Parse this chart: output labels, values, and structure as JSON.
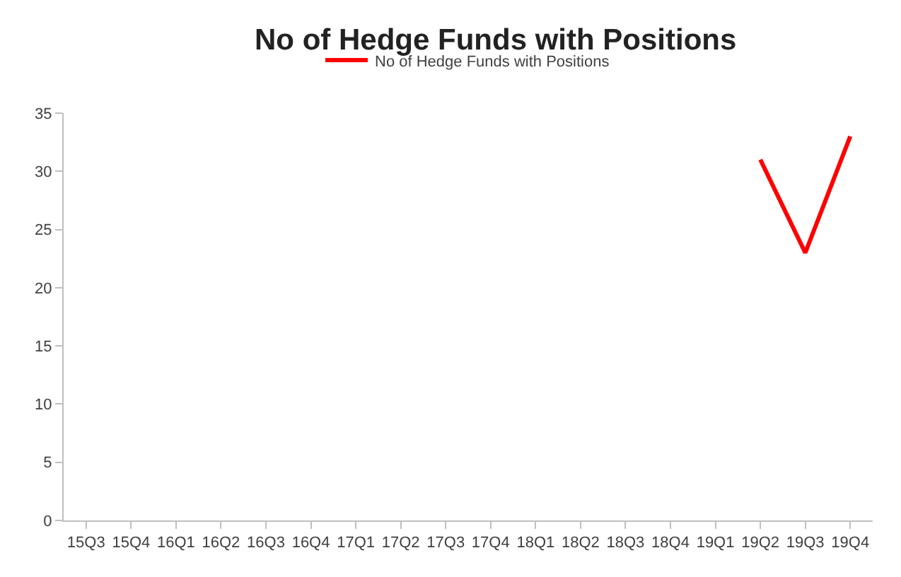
{
  "chart_data": {
    "type": "line",
    "title": "No of Hedge Funds with Positions",
    "categories": [
      "15Q3",
      "15Q4",
      "16Q1",
      "16Q2",
      "16Q3",
      "16Q4",
      "17Q1",
      "17Q2",
      "17Q3",
      "17Q4",
      "18Q1",
      "18Q2",
      "18Q3",
      "18Q4",
      "19Q1",
      "19Q2",
      "19Q3",
      "19Q4"
    ],
    "series": [
      {
        "name": "No of Hedge Funds with Positions",
        "color": "#ff0000",
        "values": [
          null,
          null,
          null,
          null,
          null,
          null,
          null,
          null,
          null,
          null,
          null,
          null,
          null,
          null,
          null,
          31,
          23,
          33
        ]
      }
    ],
    "ylim": [
      0,
      35
    ],
    "yticks": [
      0,
      5,
      10,
      15,
      20,
      25,
      30,
      35
    ],
    "grid": false,
    "legend": "top",
    "marker": "none",
    "line_style": "solid"
  }
}
